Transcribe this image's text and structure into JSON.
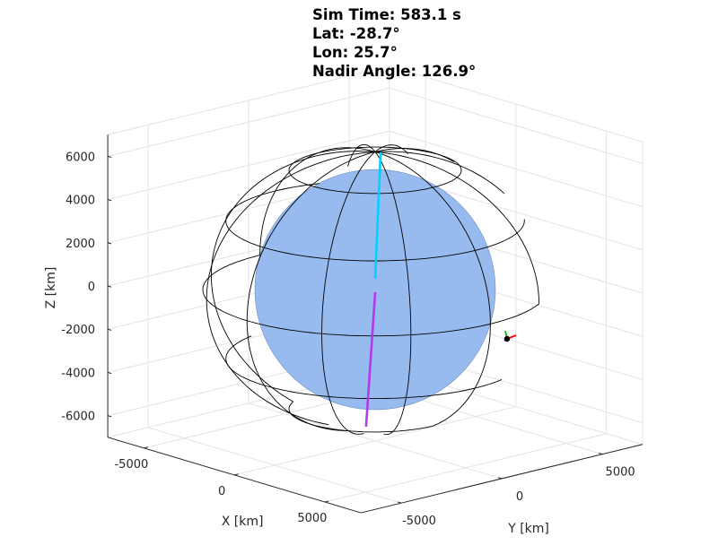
{
  "chart_data": {
    "type": "3d-orbit-visualization",
    "title_lines": [
      "Sim Time: 583.1 s",
      "Lat: -28.7°",
      "Lon: 25.7°",
      "Nadir Angle: 126.9°"
    ],
    "xlabel": "X [km]",
    "ylabel": "Y [km]",
    "zlabel": "Z [km]",
    "x_ticks": [
      -5000,
      0,
      5000
    ],
    "y_ticks": [
      -5000,
      0,
      5000
    ],
    "z_ticks": [
      -6000,
      -4000,
      -2000,
      0,
      2000,
      4000,
      6000
    ],
    "xlim": [
      -7000,
      7000
    ],
    "ylim": [
      -7000,
      7000
    ],
    "zlim": [
      -7000,
      7000
    ],
    "grid": true,
    "globe": {
      "radius_km": 6371,
      "fill_color": "#8cb4ec",
      "fill_opacity": 0.9,
      "edge_color": "#000000",
      "latitude_lines_deg": [
        -60,
        -30,
        0,
        30,
        60
      ],
      "meridian_count": 12
    },
    "nadir_line": {
      "segments": [
        {
          "color": "#00d0ff",
          "name": "upper"
        },
        {
          "color": "#b23aee",
          "name": "lower"
        }
      ]
    },
    "spacecraft_body_axes": [
      {
        "color": "#ff0000",
        "name": "x"
      },
      {
        "color": "#00c000",
        "name": "y"
      },
      {
        "color": "#0000ff",
        "name": "z"
      }
    ],
    "spacecraft_marker_color": "#000000"
  }
}
